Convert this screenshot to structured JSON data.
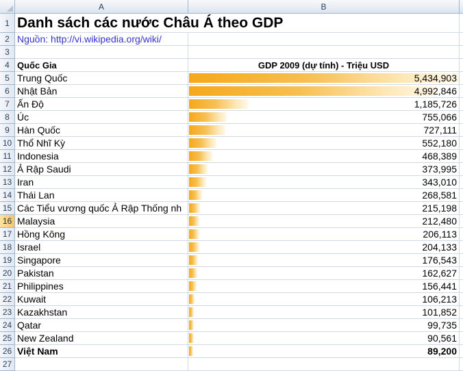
{
  "columns": [
    "A",
    "B"
  ],
  "title": "Danh sách các nước Châu Á theo GDP",
  "source": "Nguồn: http://vi.wikipedia.org/wiki/",
  "header": {
    "country": "Quốc Gia",
    "gdp": "GDP 2009 (dự tính) - Triệu USD"
  },
  "colors": {
    "bar": "#f5a81a",
    "source_text": "#3333cc",
    "grid": "#d0d7e5"
  },
  "active_row": 16,
  "rows": [
    {
      "row": 5,
      "country": "Trung Quốc",
      "gdp": "5,434,903",
      "value": 5434903
    },
    {
      "row": 6,
      "country": "Nhật Bản",
      "gdp": "4,992,846",
      "value": 4992846
    },
    {
      "row": 7,
      "country": "Ấn Độ",
      "gdp": "1,185,726",
      "value": 1185726
    },
    {
      "row": 8,
      "country": "Úc",
      "gdp": "755,066",
      "value": 755066
    },
    {
      "row": 9,
      "country": "Hàn Quốc",
      "gdp": "727,111",
      "value": 727111
    },
    {
      "row": 10,
      "country": "Thổ Nhĩ Kỳ",
      "gdp": "552,180",
      "value": 552180
    },
    {
      "row": 11,
      "country": "Indonesia",
      "gdp": "468,389",
      "value": 468389
    },
    {
      "row": 12,
      "country": "Ả Rập Saudi",
      "gdp": "373,995",
      "value": 373995
    },
    {
      "row": 13,
      "country": "Iran",
      "gdp": "343,010",
      "value": 343010
    },
    {
      "row": 14,
      "country": "Thái Lan",
      "gdp": "268,581",
      "value": 268581
    },
    {
      "row": 15,
      "country": "Các Tiểu vương quốc Ả Rập Thống nh",
      "gdp": "215,198",
      "value": 215198
    },
    {
      "row": 16,
      "country": "Malaysia",
      "gdp": "212,480",
      "value": 212480
    },
    {
      "row": 17,
      "country": "Hồng Kông",
      "gdp": "206,113",
      "value": 206113
    },
    {
      "row": 18,
      "country": "Israel",
      "gdp": "204,133",
      "value": 204133
    },
    {
      "row": 19,
      "country": "Singapore",
      "gdp": "176,543",
      "value": 176543
    },
    {
      "row": 20,
      "country": "Pakistan",
      "gdp": "162,627",
      "value": 162627
    },
    {
      "row": 21,
      "country": "Philippines",
      "gdp": "156,441",
      "value": 156441
    },
    {
      "row": 22,
      "country": "Kuwait",
      "gdp": "106,213",
      "value": 106213
    },
    {
      "row": 23,
      "country": "Kazakhstan",
      "gdp": "101,852",
      "value": 101852
    },
    {
      "row": 24,
      "country": "Qatar",
      "gdp": "99,735",
      "value": 99735
    },
    {
      "row": 25,
      "country": "New Zealand",
      "gdp": "90,561",
      "value": 90561
    },
    {
      "row": 26,
      "country": "Việt Nam",
      "gdp": "89,200",
      "value": 89200,
      "bold": true
    }
  ]
}
